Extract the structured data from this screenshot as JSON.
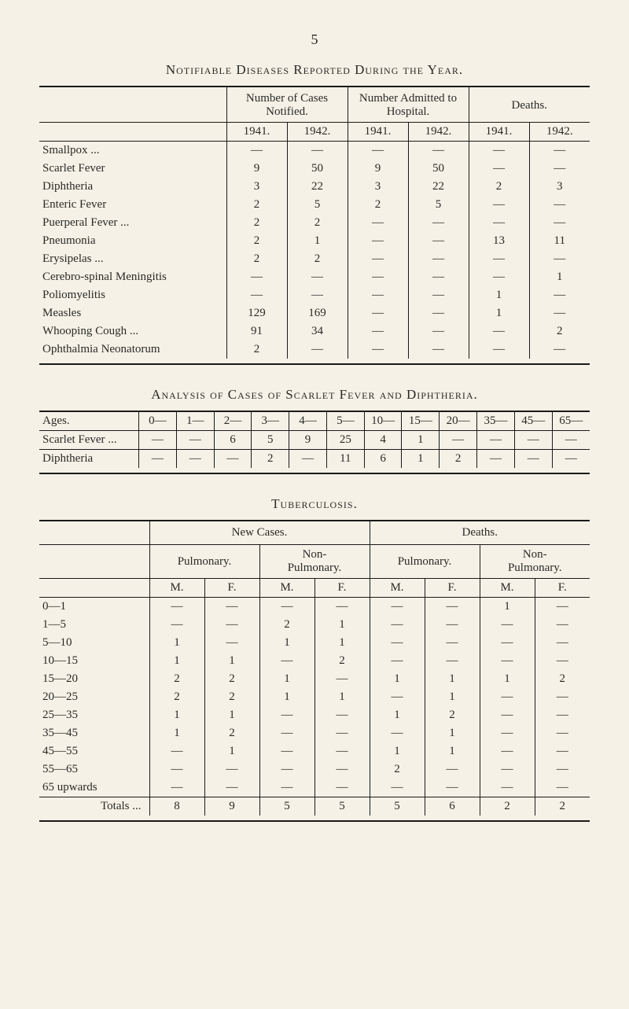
{
  "page_number": "5",
  "titles": {
    "t1": "Notifiable Diseases Reported During the Year.",
    "t2": "Analysis of Cases of Scarlet Fever and Diphtheria.",
    "t3": "Tuberculosis."
  },
  "dash": "—",
  "t1": {
    "group_headers": [
      "Number of Cases Notified.",
      "Number Admitted to Hospital.",
      "Deaths."
    ],
    "year_a": "1941.",
    "year_b": "1942.",
    "rows": [
      {
        "label": "Smallpox ...",
        "v": [
          "—",
          "—",
          "—",
          "—",
          "—",
          "—"
        ]
      },
      {
        "label": "Scarlet Fever",
        "v": [
          "9",
          "50",
          "9",
          "50",
          "—",
          "—"
        ]
      },
      {
        "label": "Diphtheria",
        "v": [
          "3",
          "22",
          "3",
          "22",
          "2",
          "3"
        ]
      },
      {
        "label": "Enteric Fever",
        "v": [
          "2",
          "5",
          "2",
          "5",
          "—",
          "—"
        ]
      },
      {
        "label": "Puerperal Fever ...",
        "v": [
          "2",
          "2",
          "—",
          "—",
          "—",
          "—"
        ]
      },
      {
        "label": "Pneumonia",
        "v": [
          "2",
          "1",
          "—",
          "—",
          "13",
          "11"
        ]
      },
      {
        "label": "Erysipelas ...",
        "v": [
          "2",
          "2",
          "—",
          "—",
          "—",
          "—"
        ]
      },
      {
        "label": "Cerebro-spinal Meningitis",
        "v": [
          "—",
          "—",
          "—",
          "—",
          "—",
          "1"
        ]
      },
      {
        "label": "Poliomyelitis",
        "v": [
          "—",
          "—",
          "—",
          "—",
          "1",
          "—"
        ]
      },
      {
        "label": "Measles",
        "v": [
          "129",
          "169",
          "—",
          "—",
          "1",
          "—"
        ]
      },
      {
        "label": "Whooping Cough ...",
        "v": [
          "91",
          "34",
          "—",
          "—",
          "—",
          "2"
        ]
      },
      {
        "label": "Ophthalmia Neonatorum",
        "v": [
          "2",
          "—",
          "—",
          "—",
          "—",
          "—"
        ]
      }
    ]
  },
  "t2": {
    "header_label": "Ages.",
    "ages": [
      "0—",
      "1—",
      "2—",
      "3—",
      "4—",
      "5—",
      "10—",
      "15—",
      "20—",
      "35—",
      "45—",
      "65—"
    ],
    "rows": [
      {
        "label": "Scarlet Fever   ...",
        "v": [
          "—",
          "—",
          "6",
          "5",
          "9",
          "25",
          "4",
          "1",
          "—",
          "—",
          "—",
          "—"
        ]
      },
      {
        "label": "Diphtheria",
        "v": [
          "—",
          "—",
          "—",
          "2",
          "—",
          "11",
          "6",
          "1",
          "2",
          "—",
          "—",
          "—"
        ]
      }
    ]
  },
  "t3": {
    "top_headers": [
      "New Cases.",
      "Deaths."
    ],
    "sub_headers": [
      "Pulmonary.",
      "Non-\nPulmonary.",
      "Pulmonary.",
      "Non-\nPulmonary."
    ],
    "mf": [
      "M.",
      "F."
    ],
    "rows": [
      {
        "label": "0—1",
        "v": [
          "—",
          "—",
          "—",
          "—",
          "—",
          "—",
          "1",
          "—"
        ]
      },
      {
        "label": "1—5",
        "v": [
          "—",
          "—",
          "2",
          "1",
          "—",
          "—",
          "—",
          "—"
        ]
      },
      {
        "label": "5—10",
        "v": [
          "1",
          "—",
          "1",
          "1",
          "—",
          "—",
          "—",
          "—"
        ]
      },
      {
        "label": "10—15",
        "v": [
          "1",
          "1",
          "—",
          "2",
          "—",
          "—",
          "—",
          "—"
        ]
      },
      {
        "label": "15—20",
        "v": [
          "2",
          "2",
          "1",
          "—",
          "1",
          "1",
          "1",
          "2"
        ]
      },
      {
        "label": "20—25",
        "v": [
          "2",
          "2",
          "1",
          "1",
          "—",
          "1",
          "—",
          "—"
        ]
      },
      {
        "label": "25—35",
        "v": [
          "1",
          "1",
          "—",
          "—",
          "1",
          "2",
          "—",
          "—"
        ]
      },
      {
        "label": "35—45",
        "v": [
          "1",
          "2",
          "—",
          "—",
          "—",
          "1",
          "—",
          "—"
        ]
      },
      {
        "label": "45—55",
        "v": [
          "—",
          "1",
          "—",
          "—",
          "1",
          "1",
          "—",
          "—"
        ]
      },
      {
        "label": "55—65",
        "v": [
          "—",
          "—",
          "—",
          "—",
          "2",
          "—",
          "—",
          "—"
        ]
      },
      {
        "label": "65 upwards",
        "v": [
          "—",
          "—",
          "—",
          "—",
          "—",
          "—",
          "—",
          "—"
        ]
      }
    ],
    "totals_label": "Totals   ...",
    "totals": [
      "8",
      "9",
      "5",
      "5",
      "5",
      "6",
      "2",
      "2"
    ]
  }
}
